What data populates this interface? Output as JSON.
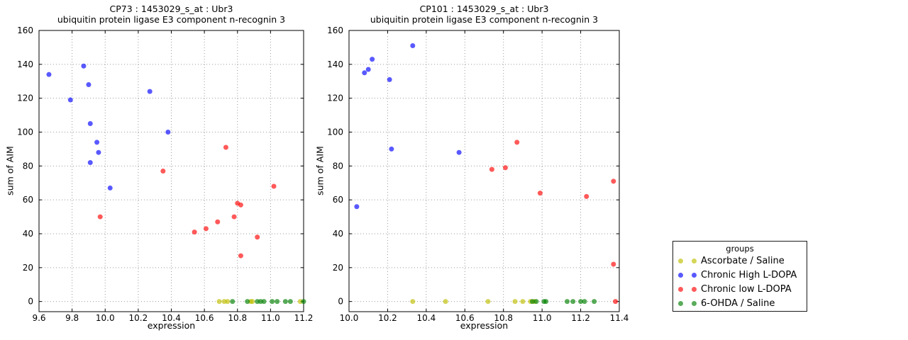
{
  "legend": {
    "title": "groups",
    "entries": [
      {
        "label": "Ascorbate / Saline",
        "color": "#bfbf00"
      },
      {
        "label": "Chronic High L-DOPA",
        "color": "#0000ff"
      },
      {
        "label": "Chronic low L-DOPA",
        "color": "#ff0000"
      },
      {
        "label": "6-OHDA / Saline",
        "color": "#008000"
      }
    ]
  },
  "chart_data": [
    {
      "type": "scatter",
      "title": "CP73 : 1453029_s_at : Ubr3",
      "subtitle": "ubiquitin protein ligase E3 component n-recognin 3",
      "xlabel": "expression",
      "ylabel": "sum of AIM",
      "xlim": [
        9.6,
        11.2
      ],
      "ylim": [
        -6,
        160
      ],
      "xticks": [
        "9.6",
        "9.8",
        "10.0",
        "10.2",
        "10.4",
        "10.6",
        "10.8",
        "11.0",
        "11.2"
      ],
      "yticks": [
        "0",
        "20",
        "40",
        "60",
        "80",
        "100",
        "120",
        "140",
        "160"
      ],
      "grid": true,
      "legend_position": "outside-right",
      "series": [
        {
          "name": "Ascorbate / Saline",
          "color": "#bfbf00",
          "points": [
            [
              10.69,
              0
            ],
            [
              10.72,
              0
            ],
            [
              10.74,
              0
            ],
            [
              10.88,
              0
            ],
            [
              10.89,
              0
            ],
            [
              11.18,
              0
            ]
          ]
        },
        {
          "name": "Chronic High L-DOPA",
          "color": "#0000ff",
          "points": [
            [
              9.66,
              134
            ],
            [
              9.79,
              119
            ],
            [
              9.87,
              139
            ],
            [
              9.9,
              128
            ],
            [
              9.91,
              105
            ],
            [
              9.91,
              82
            ],
            [
              9.95,
              94
            ],
            [
              9.96,
              88
            ],
            [
              10.03,
              67
            ],
            [
              10.27,
              124
            ],
            [
              10.38,
              100
            ]
          ]
        },
        {
          "name": "Chronic low L-DOPA",
          "color": "#ff0000",
          "points": [
            [
              9.97,
              50
            ],
            [
              10.35,
              77
            ],
            [
              10.54,
              41
            ],
            [
              10.61,
              43
            ],
            [
              10.68,
              47
            ],
            [
              10.73,
              91
            ],
            [
              10.78,
              50
            ],
            [
              10.8,
              58
            ],
            [
              10.82,
              57
            ],
            [
              10.82,
              27
            ],
            [
              10.92,
              38
            ],
            [
              11.02,
              68
            ]
          ]
        },
        {
          "name": "6-OHDA / Saline",
          "color": "#008000",
          "points": [
            [
              10.77,
              0
            ],
            [
              10.86,
              0
            ],
            [
              10.92,
              0
            ],
            [
              10.94,
              0
            ],
            [
              10.96,
              0
            ],
            [
              11.01,
              0
            ],
            [
              11.04,
              0
            ],
            [
              11.09,
              0
            ],
            [
              11.12,
              0
            ],
            [
              11.2,
              0
            ]
          ]
        }
      ]
    },
    {
      "type": "scatter",
      "title": "CP101 : 1453029_s_at : Ubr3",
      "subtitle": "ubiquitin protein ligase E3 component n-recognin 3",
      "xlabel": "expression",
      "ylabel": "sum of AIM",
      "xlim": [
        10.0,
        11.4
      ],
      "ylim": [
        -6,
        160
      ],
      "xticks": [
        "10.0",
        "10.2",
        "10.4",
        "10.6",
        "10.8",
        "11.0",
        "11.2",
        "11.4"
      ],
      "yticks": [
        "0",
        "20",
        "40",
        "60",
        "80",
        "100",
        "120",
        "140",
        "160"
      ],
      "grid": true,
      "series": [
        {
          "name": "Ascorbate / Saline",
          "color": "#bfbf00",
          "points": [
            [
              10.33,
              0
            ],
            [
              10.5,
              0
            ],
            [
              10.72,
              0
            ],
            [
              10.86,
              0
            ],
            [
              10.9,
              0
            ],
            [
              10.94,
              0
            ],
            [
              10.96,
              0
            ]
          ]
        },
        {
          "name": "Chronic High L-DOPA",
          "color": "#0000ff",
          "points": [
            [
              10.04,
              56
            ],
            [
              10.08,
              135
            ],
            [
              10.1,
              137
            ],
            [
              10.12,
              143
            ],
            [
              10.21,
              131
            ],
            [
              10.22,
              90
            ],
            [
              10.33,
              151
            ],
            [
              10.57,
              88
            ]
          ]
        },
        {
          "name": "Chronic low L-DOPA",
          "color": "#ff0000",
          "points": [
            [
              10.74,
              78
            ],
            [
              10.81,
              79
            ],
            [
              10.87,
              94
            ],
            [
              10.99,
              64
            ],
            [
              11.23,
              62
            ],
            [
              11.37,
              71
            ],
            [
              11.37,
              22
            ],
            [
              11.38,
              0
            ]
          ]
        },
        {
          "name": "6-OHDA / Saline",
          "color": "#008000",
          "points": [
            [
              10.95,
              0
            ],
            [
              10.97,
              0
            ],
            [
              11.01,
              0
            ],
            [
              11.02,
              0
            ],
            [
              11.13,
              0
            ],
            [
              11.16,
              0
            ],
            [
              11.2,
              0
            ],
            [
              11.22,
              0
            ],
            [
              11.27,
              0
            ]
          ]
        }
      ]
    }
  ]
}
